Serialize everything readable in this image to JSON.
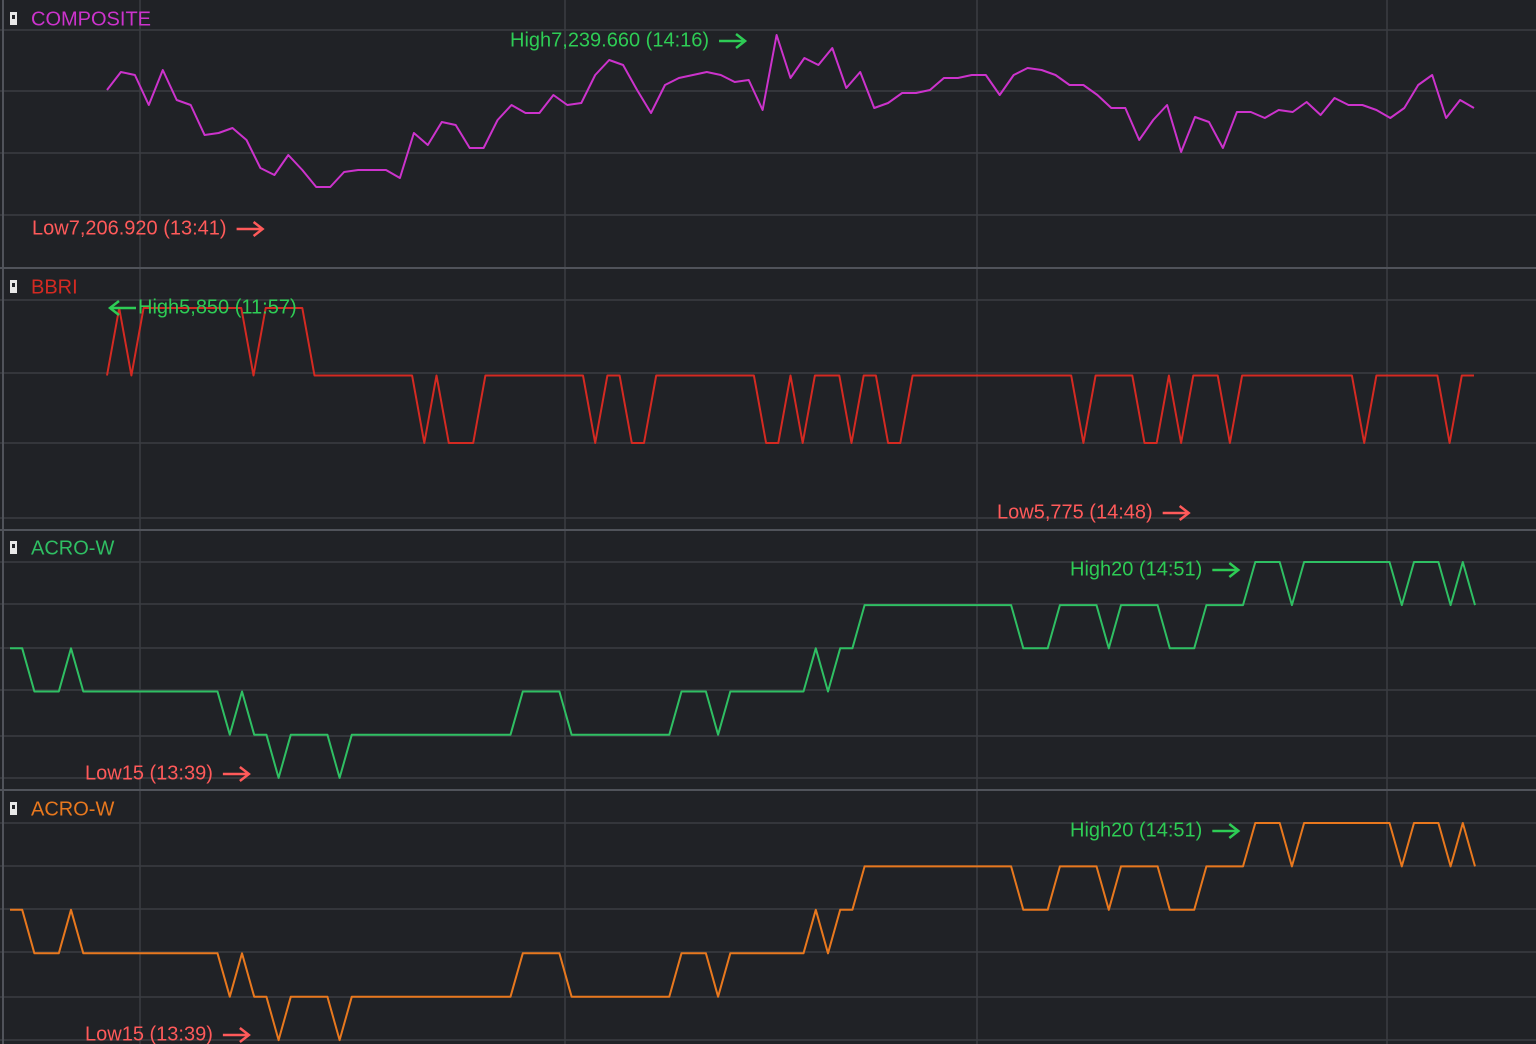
{
  "chart_data": [
    {
      "type": "line",
      "series": [
        {
          "name": "COMPOSITE",
          "color": "#cc33cc",
          "values": [
            7227.82,
            7231.69,
            7231.05,
            7224.58,
            7232.12,
            7225.66,
            7224.58,
            7218.12,
            7218.55,
            7219.63,
            7217.05,
            7211.01,
            7209.51,
            7213.81,
            7210.58,
            7206.92,
            7206.92,
            7210.15,
            7210.58,
            7210.58,
            7210.58,
            7208.86,
            7218.55,
            7215.97,
            7220.92,
            7220.28,
            7215.32,
            7215.32,
            7221.35,
            7224.58,
            7222.86,
            7222.86,
            7226.74,
            7224.58,
            7225.02,
            7231.05,
            7234.28,
            7233.2,
            7227.82,
            7222.86,
            7228.89,
            7230.4,
            7231.05,
            7231.69,
            7231.05,
            7229.54,
            7229.97,
            7223.51,
            7239.66,
            7230.4,
            7234.71,
            7233.2,
            7236.86,
            7228.25,
            7231.69,
            7223.94,
            7225.02,
            7227.17,
            7227.17,
            7227.82,
            7230.4,
            7230.4,
            7231.05,
            7231.05,
            7226.74,
            7231.05,
            7232.55,
            7232.12,
            7231.05,
            7228.89,
            7228.89,
            7226.74,
            7223.94,
            7223.94,
            7217.05,
            7221.35,
            7224.58,
            7214.46,
            7222.0,
            7220.92,
            7215.32,
            7223.08,
            7223.08,
            7221.78,
            7223.51,
            7223.08,
            7225.23,
            7222.43,
            7226.09,
            7224.58,
            7224.58,
            7223.51,
            7221.78,
            7223.94,
            7228.89,
            7231.05,
            7221.78,
            7225.66,
            7223.94
          ]
        }
      ],
      "ylim": [
        7189.47,
        7247.2
      ],
      "annotations": [
        {
          "text": "High7,239.660 (14:16)",
          "color": "#2ecc55"
        },
        {
          "text": "Low7,206.920 (13:41)",
          "color": "#ff5a5a"
        }
      ]
    },
    {
      "type": "line",
      "series": [
        {
          "name": "BBRI",
          "color": "#d42a22",
          "values": [
            5825,
            5850,
            5825,
            5850,
            5850,
            5850,
            5850,
            5850,
            5850,
            5850,
            5850,
            5850,
            5825,
            5850,
            5850,
            5850,
            5850,
            5825,
            5825,
            5825,
            5825,
            5825,
            5825,
            5825,
            5825,
            5825,
            5800,
            5825,
            5800,
            5800,
            5800,
            5825,
            5825,
            5825,
            5825,
            5825,
            5825,
            5825,
            5825,
            5825,
            5800,
            5825,
            5825,
            5800,
            5800,
            5825,
            5825,
            5825,
            5825,
            5825,
            5825,
            5825,
            5825,
            5825,
            5800,
            5800,
            5825,
            5800,
            5825,
            5825,
            5825,
            5800,
            5825,
            5825,
            5800,
            5800,
            5825,
            5825,
            5825,
            5825,
            5825,
            5825,
            5825,
            5825,
            5825,
            5825,
            5825,
            5825,
            5825,
            5825,
            5800,
            5825,
            5825,
            5825,
            5825,
            5800,
            5800,
            5825,
            5800,
            5825,
            5825,
            5825,
            5800,
            5825,
            5825,
            5825,
            5825,
            5825,
            5825,
            5825,
            5825,
            5825,
            5825,
            5800,
            5825,
            5825,
            5825,
            5825,
            5825,
            5825,
            5800,
            5825,
            5825
          ]
        }
      ],
      "ylim": [
        5767.8,
        5864.8
      ],
      "annotations": [
        {
          "text": "High5,850 (11:57)",
          "color": "#2ecc55"
        },
        {
          "text": "Low5,775 (14:48)",
          "color": "#ff5a5a"
        }
      ]
    },
    {
      "type": "line",
      "series": [
        {
          "name": "ACRO-W",
          "color": "#2fbf63",
          "values": [
            18,
            18,
            17,
            17,
            17,
            18,
            17,
            17,
            17,
            17,
            17,
            17,
            17,
            17,
            17,
            17,
            17,
            17,
            16,
            17,
            16,
            16,
            15,
            16,
            16,
            16,
            16,
            15,
            16,
            16,
            16,
            16,
            16,
            16,
            16,
            16,
            16,
            16,
            16,
            16,
            16,
            16,
            17,
            17,
            17,
            17,
            16,
            16,
            16,
            16,
            16,
            16,
            16,
            16,
            16,
            17,
            17,
            17,
            16,
            17,
            17,
            17,
            17,
            17,
            17,
            17,
            18,
            17,
            18,
            18,
            19,
            19,
            19,
            19,
            19,
            19,
            19,
            19,
            19,
            19,
            19,
            19,
            19,
            18,
            18,
            18,
            19,
            19,
            19,
            19,
            18,
            19,
            19,
            19,
            19,
            18,
            18,
            18,
            19,
            19,
            19,
            19,
            20,
            20,
            20,
            19,
            20,
            20,
            20,
            20,
            20,
            20,
            20,
            20,
            19,
            20,
            20,
            20,
            19,
            20,
            19
          ]
        }
      ],
      "ylim": [
        14.72,
        20.74
      ],
      "annotations": [
        {
          "text": "High20 (14:51)",
          "color": "#2ecc55"
        },
        {
          "text": "Low15 (13:39)",
          "color": "#ff5a5a"
        }
      ]
    },
    {
      "type": "line",
      "series": [
        {
          "name": "ACRO-W",
          "color": "#e8781e",
          "values": [
            18,
            18,
            17,
            17,
            17,
            18,
            17,
            17,
            17,
            17,
            17,
            17,
            17,
            17,
            17,
            17,
            17,
            17,
            16,
            17,
            16,
            16,
            15,
            16,
            16,
            16,
            16,
            15,
            16,
            16,
            16,
            16,
            16,
            16,
            16,
            16,
            16,
            16,
            16,
            16,
            16,
            16,
            17,
            17,
            17,
            17,
            16,
            16,
            16,
            16,
            16,
            16,
            16,
            16,
            16,
            17,
            17,
            17,
            16,
            17,
            17,
            17,
            17,
            17,
            17,
            17,
            18,
            17,
            18,
            18,
            19,
            19,
            19,
            19,
            19,
            19,
            19,
            19,
            19,
            19,
            19,
            19,
            19,
            18,
            18,
            18,
            19,
            19,
            19,
            19,
            18,
            19,
            19,
            19,
            19,
            18,
            18,
            18,
            19,
            19,
            19,
            19,
            20,
            20,
            20,
            19,
            20,
            20,
            20,
            20,
            20,
            20,
            20,
            20,
            19,
            20,
            20,
            20,
            19,
            20,
            19
          ]
        }
      ],
      "ylim": [
        14.91,
        20.76
      ],
      "annotations": [
        {
          "text": "High20 (14:51)",
          "color": "#2ecc55"
        },
        {
          "text": "Low15 (13:39)",
          "color": "#ff5a5a"
        }
      ]
    }
  ]
}
